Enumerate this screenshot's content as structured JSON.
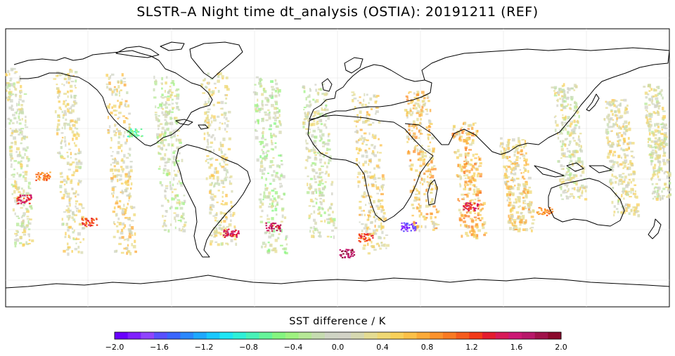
{
  "title": "SLSTR–A Night time dt_analysis (OSTIA): 20191211 (REF)",
  "colorbar": {
    "label": "SST difference / K",
    "min": -2.0,
    "max": 2.0,
    "tick_labels": [
      "−2.0",
      "−1.6",
      "−1.2",
      "−0.8",
      "−0.4",
      "0.0",
      "0.4",
      "0.8",
      "1.2",
      "1.6",
      "2.0"
    ],
    "colors": [
      "#6a00ff",
      "#7f20ff",
      "#8f44ff",
      "#5850ff",
      "#3a66ff",
      "#2a88ff",
      "#1ea8ff",
      "#19c8ff",
      "#1ee6f5",
      "#2ef0d8",
      "#48f2b8",
      "#66f49a",
      "#84f580",
      "#9ef280",
      "#b6e896",
      "#c6dcb0",
      "#cfd4c4",
      "#d2d2c6",
      "#d6d8b0",
      "#e4dc92",
      "#efd874",
      "#f8d05a",
      "#fcc048",
      "#fcaa38",
      "#fc922c",
      "#fa7a22",
      "#f65c1c",
      "#f23a18",
      "#e41c2e",
      "#d81a58",
      "#cc1874",
      "#b8186a",
      "#a0124a",
      "#8a0a2c"
    ]
  },
  "chart_data": {
    "type": "heatmap",
    "title": "SLSTR–A Night time dt_analysis (OSTIA): 20191211 (REF)",
    "colorbar_label": "SST difference / K",
    "value_range": [
      -2.0,
      2.0
    ],
    "projection": "equirectangular",
    "lon_range": [
      -180,
      180
    ],
    "lat_range": [
      -90,
      90
    ],
    "swaths": [
      {
        "lon": [
          -178,
          -168
        ],
        "lat": [
          -50,
          65
        ],
        "value": 0.1
      },
      {
        "lon": [
          -152,
          -140
        ],
        "lat": [
          -55,
          65
        ],
        "value": 0.2
      },
      {
        "lon": [
          -124,
          -112
        ],
        "lat": [
          -55,
          62
        ],
        "value": 0.3
      },
      {
        "lon": [
          -98,
          -85
        ],
        "lat": [
          -40,
          60
        ],
        "value": 0.0
      },
      {
        "lon": [
          -72,
          -58
        ],
        "lat": [
          -50,
          62
        ],
        "value": 0.2
      },
      {
        "lon": [
          -44,
          -30
        ],
        "lat": [
          -55,
          60
        ],
        "value": -0.1
      },
      {
        "lon": [
          -18,
          -4
        ],
        "lat": [
          -45,
          55
        ],
        "value": 0.0
      },
      {
        "lon": [
          10,
          24
        ],
        "lat": [
          -55,
          50
        ],
        "value": 0.3
      },
      {
        "lon": [
          38,
          52
        ],
        "lat": [
          -40,
          50
        ],
        "value": 0.5
      },
      {
        "lon": [
          64,
          78
        ],
        "lat": [
          -45,
          30
        ],
        "value": 0.6
      },
      {
        "lon": [
          90,
          104
        ],
        "lat": [
          -40,
          20
        ],
        "value": 0.4
      },
      {
        "lon": [
          118,
          132
        ],
        "lat": [
          -20,
          55
        ],
        "value": 0.1
      },
      {
        "lon": [
          146,
          160
        ],
        "lat": [
          -30,
          45
        ],
        "value": 0.2
      },
      {
        "lon": [
          168,
          178
        ],
        "lat": [
          -20,
          55
        ],
        "value": 0.1
      }
    ],
    "hotspots": [
      {
        "lon": -170,
        "lat": -20,
        "value": 1.4
      },
      {
        "lon": -160,
        "lat": -5,
        "value": 1.0
      },
      {
        "lon": -135,
        "lat": -35,
        "value": 1.2
      },
      {
        "lon": -58,
        "lat": -42,
        "value": 1.5
      },
      {
        "lon": -35,
        "lat": -38,
        "value": 1.6
      },
      {
        "lon": 15,
        "lat": -45,
        "value": 1.2
      },
      {
        "lon": 38,
        "lat": -38,
        "value": -1.8
      },
      {
        "lon": 72,
        "lat": -25,
        "value": 1.4
      },
      {
        "lon": 112,
        "lat": -28,
        "value": 0.9
      },
      {
        "lon": -110,
        "lat": 23,
        "value": -0.6
      },
      {
        "lon": 5,
        "lat": -55,
        "value": 1.8
      }
    ]
  }
}
